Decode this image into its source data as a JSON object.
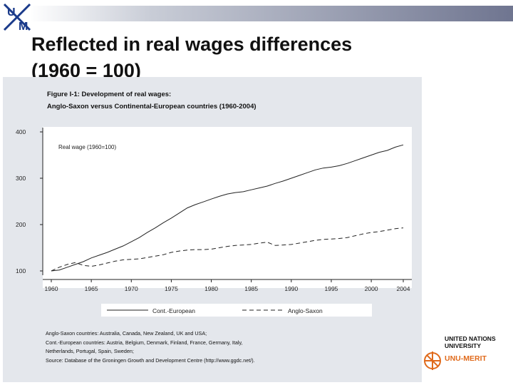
{
  "slide": {
    "title_line1": "Reflected in real wages differences",
    "title_line2": "(1960 = 100)"
  },
  "figure": {
    "title_line1": "Figure I-1: Development of real wages:",
    "title_line2": "Anglo-Saxon versus Continental-European countries (1960-2004)",
    "notes": [
      "Anglo-Saxon countries: Australia, Canada, New Zealand, UK and USA;",
      "Cont.-European countries: Austria, Belgium, Denmark, Finland, France, Germany, Italy,",
      "Netherlands, Portugal, Spain, Sweden;",
      "Source: Database of the Groningen Growth and Development Centre (http://www.ggdc.net/)."
    ]
  },
  "logos": {
    "um_letters": [
      "U",
      "M"
    ],
    "unu_line1": "UNITED NATIONS",
    "unu_line2": "UNIVERSITY",
    "unu_merit": "UNU-MERIT",
    "merit_color": "#e06a1b"
  },
  "chart_data": {
    "type": "line",
    "title": "",
    "inner_label": "Real wage (1960=100)",
    "xlabel": "",
    "ylabel": "",
    "xlim": [
      1960,
      2004
    ],
    "ylim": [
      100,
      400
    ],
    "xticks": [
      1960,
      1965,
      1970,
      1975,
      1980,
      1985,
      1990,
      1995,
      2000,
      2004
    ],
    "yticks": [
      100,
      200,
      300,
      400
    ],
    "grid": false,
    "legend_position": "bottom",
    "x": [
      1960,
      1961,
      1962,
      1963,
      1964,
      1965,
      1966,
      1967,
      1968,
      1969,
      1970,
      1971,
      1972,
      1973,
      1974,
      1975,
      1976,
      1977,
      1978,
      1979,
      1980,
      1981,
      1982,
      1983,
      1984,
      1985,
      1986,
      1987,
      1988,
      1989,
      1990,
      1991,
      1992,
      1993,
      1994,
      1995,
      1996,
      1997,
      1998,
      1999,
      2000,
      2001,
      2002,
      2003,
      2004
    ],
    "series": [
      {
        "name": "Cont.-European",
        "style": "solid",
        "values": [
          100,
          102,
          108,
          114,
          120,
          128,
          134,
          140,
          147,
          154,
          163,
          172,
          183,
          193,
          204,
          214,
          225,
          236,
          243,
          249,
          255,
          261,
          266,
          269,
          271,
          275,
          279,
          283,
          289,
          294,
          300,
          306,
          312,
          318,
          322,
          324,
          327,
          332,
          338,
          344,
          350,
          356,
          360,
          367,
          372
        ]
      },
      {
        "name": "Anglo-Saxon",
        "style": "dashed",
        "values": [
          100,
          108,
          114,
          118,
          112,
          110,
          113,
          117,
          121,
          124,
          125,
          126,
          129,
          132,
          135,
          140,
          143,
          145,
          146,
          146,
          147,
          150,
          153,
          155,
          156,
          157,
          160,
          162,
          155,
          156,
          157,
          160,
          163,
          166,
          168,
          169,
          170,
          172,
          176,
          180,
          183,
          185,
          188,
          191,
          193
        ]
      }
    ]
  }
}
